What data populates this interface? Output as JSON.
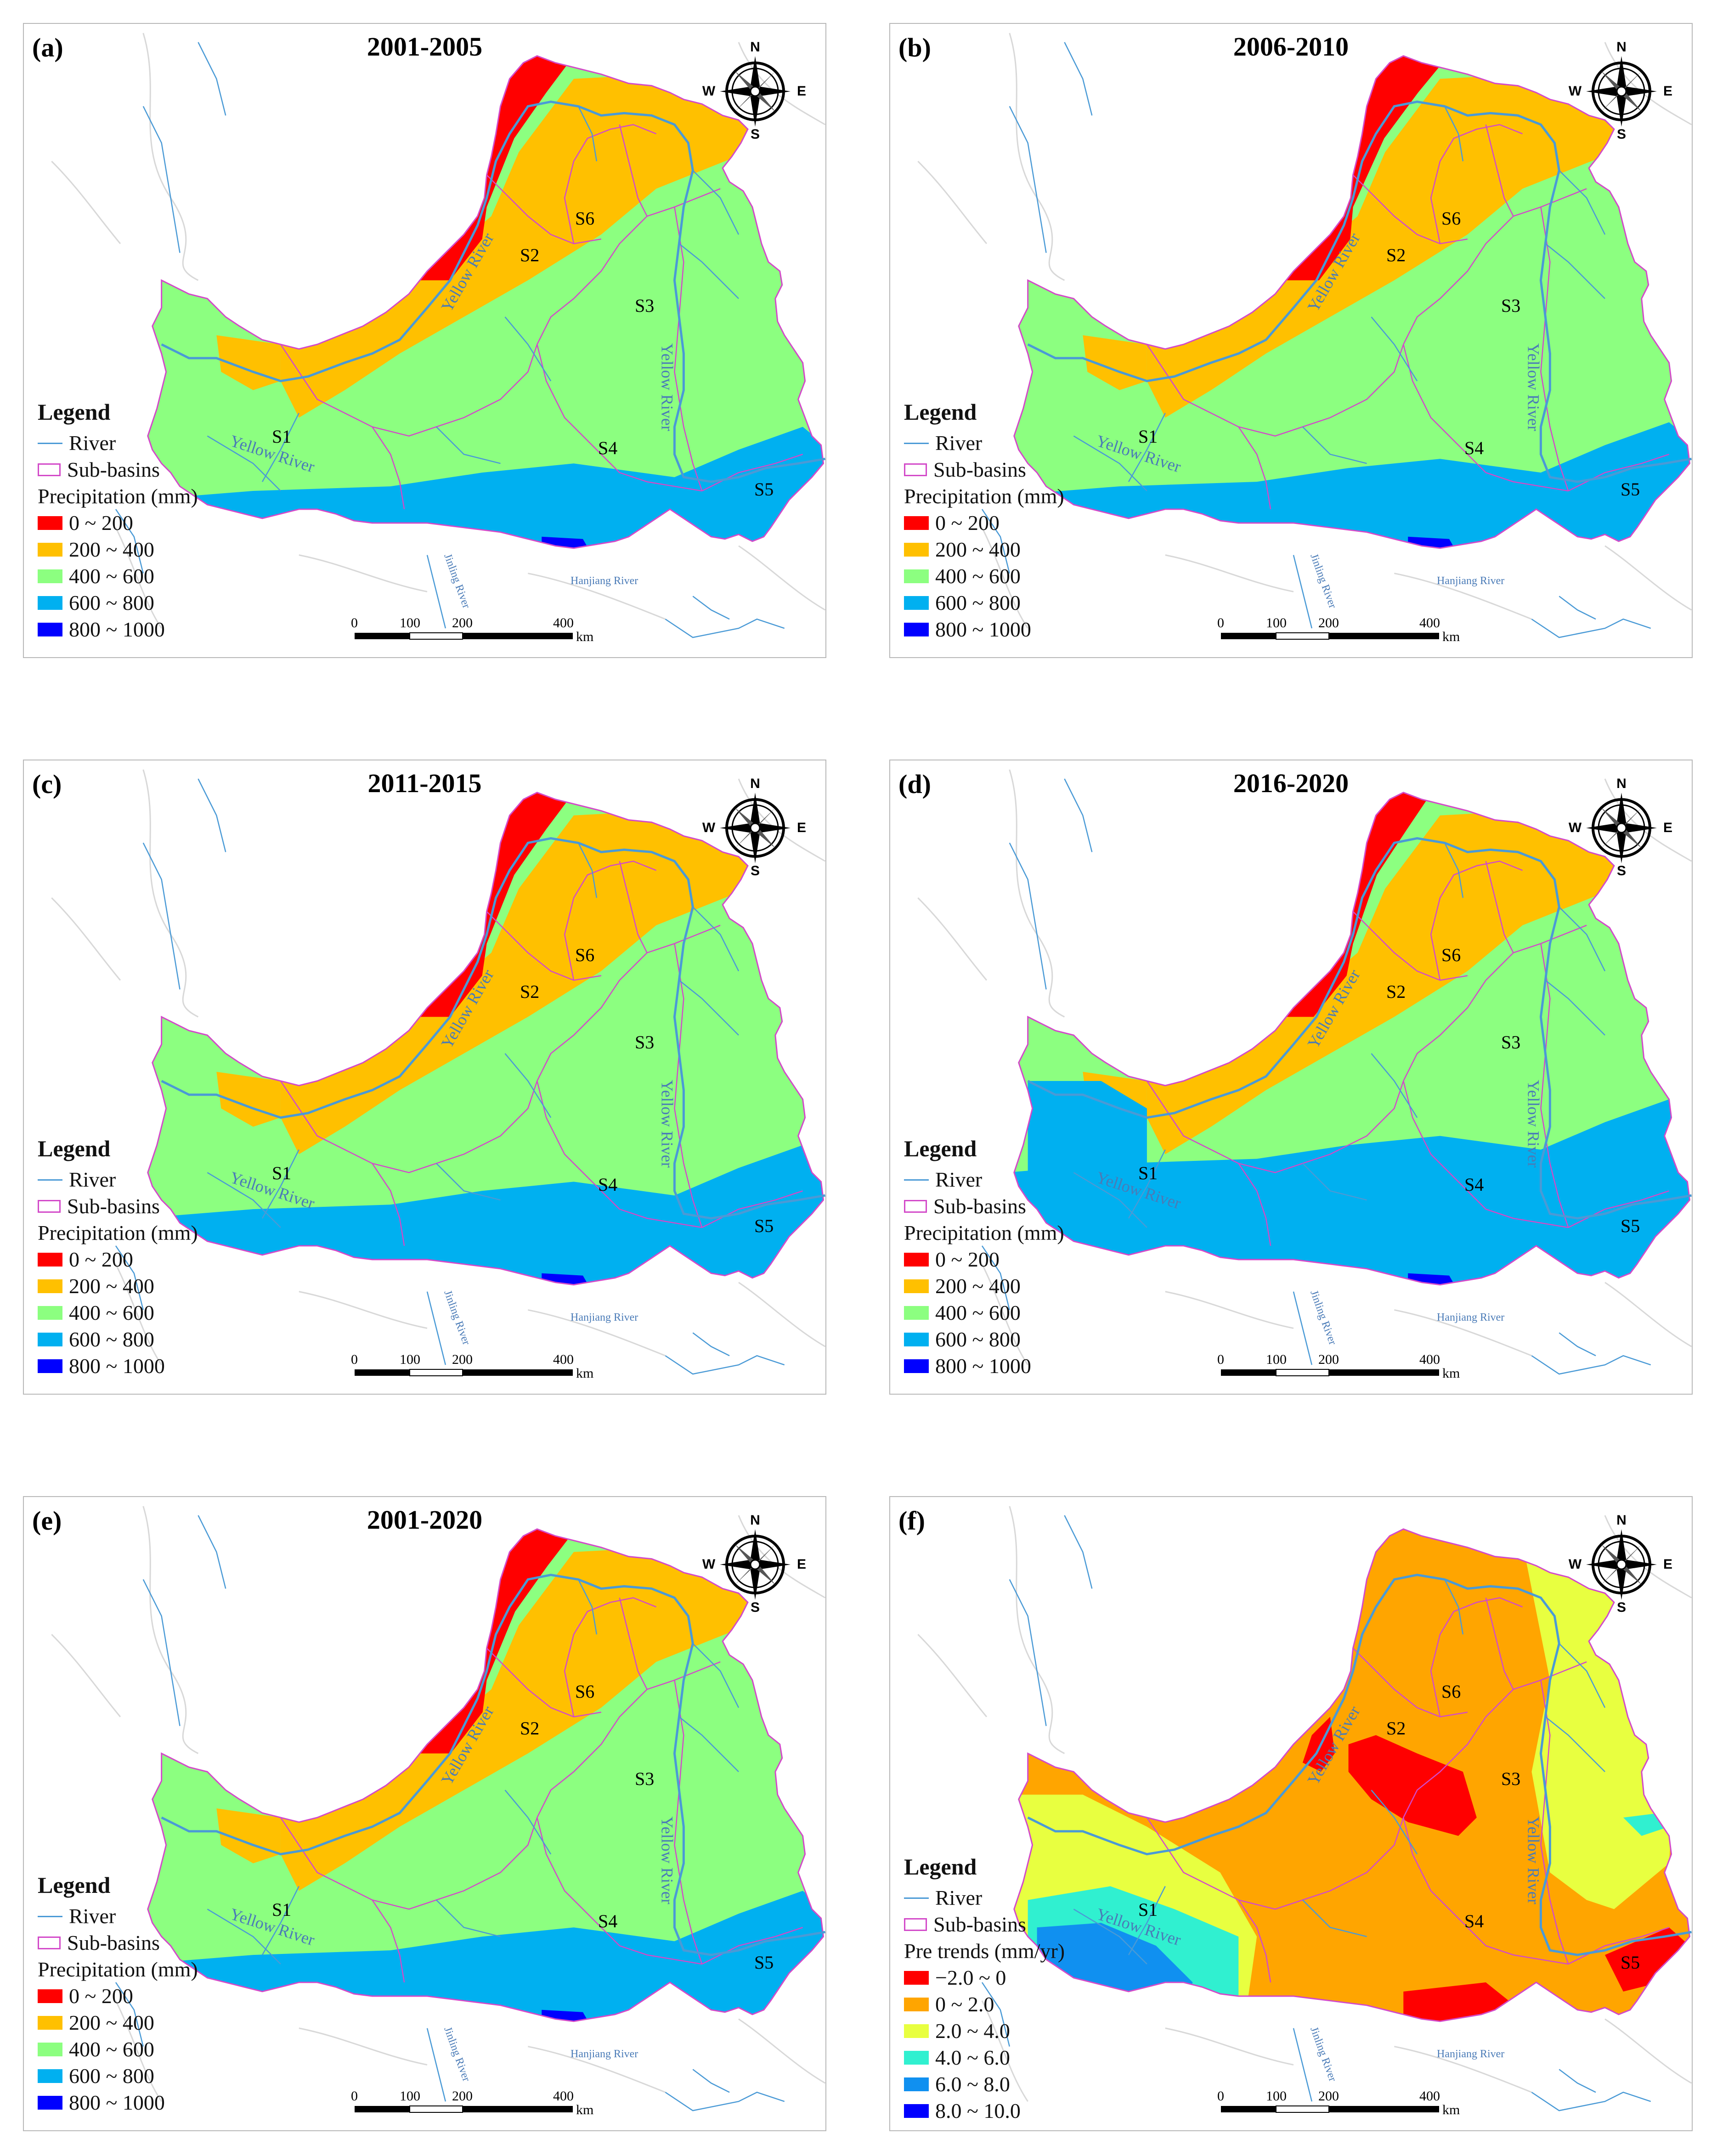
{
  "colors": {
    "river": "#4a9ad6",
    "subbasin": "#d34ac9",
    "precip": [
      "#ff0000",
      "#ffc000",
      "#8cff80",
      "#00b0f0",
      "#0000ff"
    ],
    "trend": [
      "#ff0000",
      "#ffa500",
      "#e8ff40",
      "#30f0d0",
      "#1090f0",
      "#0000ff"
    ]
  },
  "panels": [
    {
      "label": "(a)",
      "title": "2001-2005",
      "type": "precip",
      "legend": {
        "heading": "Legend",
        "river": "River",
        "subbasins": "Sub-basins",
        "class_title": "Precipitation (mm)",
        "classes": [
          "0 ~ 200",
          "200 ~ 400",
          "400 ~ 600",
          "600 ~ 800",
          "800 ~ 1000"
        ]
      }
    },
    {
      "label": "(b)",
      "title": "2006-2010",
      "type": "precip",
      "legend": {
        "heading": "Legend",
        "river": "River",
        "subbasins": "Sub-basins",
        "class_title": "Precipitation (mm)",
        "classes": [
          "0 ~ 200",
          "200 ~ 400",
          "400 ~ 600",
          "600 ~ 800",
          "800 ~ 1000"
        ]
      }
    },
    {
      "label": "(c)",
      "title": "2011-2015",
      "type": "precip",
      "legend": {
        "heading": "Legend",
        "river": "River",
        "subbasins": "Sub-basins",
        "class_title": "Precipitation (mm)",
        "classes": [
          "0 ~ 200",
          "200 ~ 400",
          "400 ~ 600",
          "600 ~ 800",
          "800 ~ 1000"
        ]
      }
    },
    {
      "label": "(d)",
      "title": "2016-2020",
      "type": "precip",
      "legend": {
        "heading": "Legend",
        "river": "River",
        "subbasins": "Sub-basins",
        "class_title": "Precipitation (mm)",
        "classes": [
          "0 ~ 200",
          "200 ~ 400",
          "400 ~ 600",
          "600 ~ 800",
          "800 ~ 1000"
        ]
      }
    },
    {
      "label": "(e)",
      "title": "2001-2020",
      "type": "precip",
      "legend": {
        "heading": "Legend",
        "river": "River",
        "subbasins": "Sub-basins",
        "class_title": "Precipitation (mm)",
        "classes": [
          "0 ~ 200",
          "200 ~ 400",
          "400 ~ 600",
          "600 ~ 800",
          "800 ~ 1000"
        ]
      }
    },
    {
      "label": "(f)",
      "title": "",
      "type": "trend",
      "legend": {
        "heading": "Legend",
        "river": "River",
        "subbasins": "Sub-basins",
        "class_title": "Pre trends (mm/yr)",
        "classes": [
          "−2.0 ~ 0",
          "0 ~ 2.0",
          "2.0 ~ 4.0",
          "4.0 ~ 6.0",
          "6.0 ~ 8.0",
          "8.0 ~ 10.0"
        ]
      }
    }
  ],
  "map_labels": {
    "subbasins": [
      "S1",
      "S2",
      "S3",
      "S4",
      "S5",
      "S6"
    ],
    "yellow_river": "Yellow River",
    "jinling_river": "Jinling River",
    "hanjiang_river": "Hanjiang River"
  },
  "compass": {
    "n": "N",
    "s": "S",
    "e": "E",
    "w": "W"
  },
  "scale": {
    "ticks": [
      "0",
      "100",
      "200",
      "400"
    ],
    "unit": "km"
  }
}
